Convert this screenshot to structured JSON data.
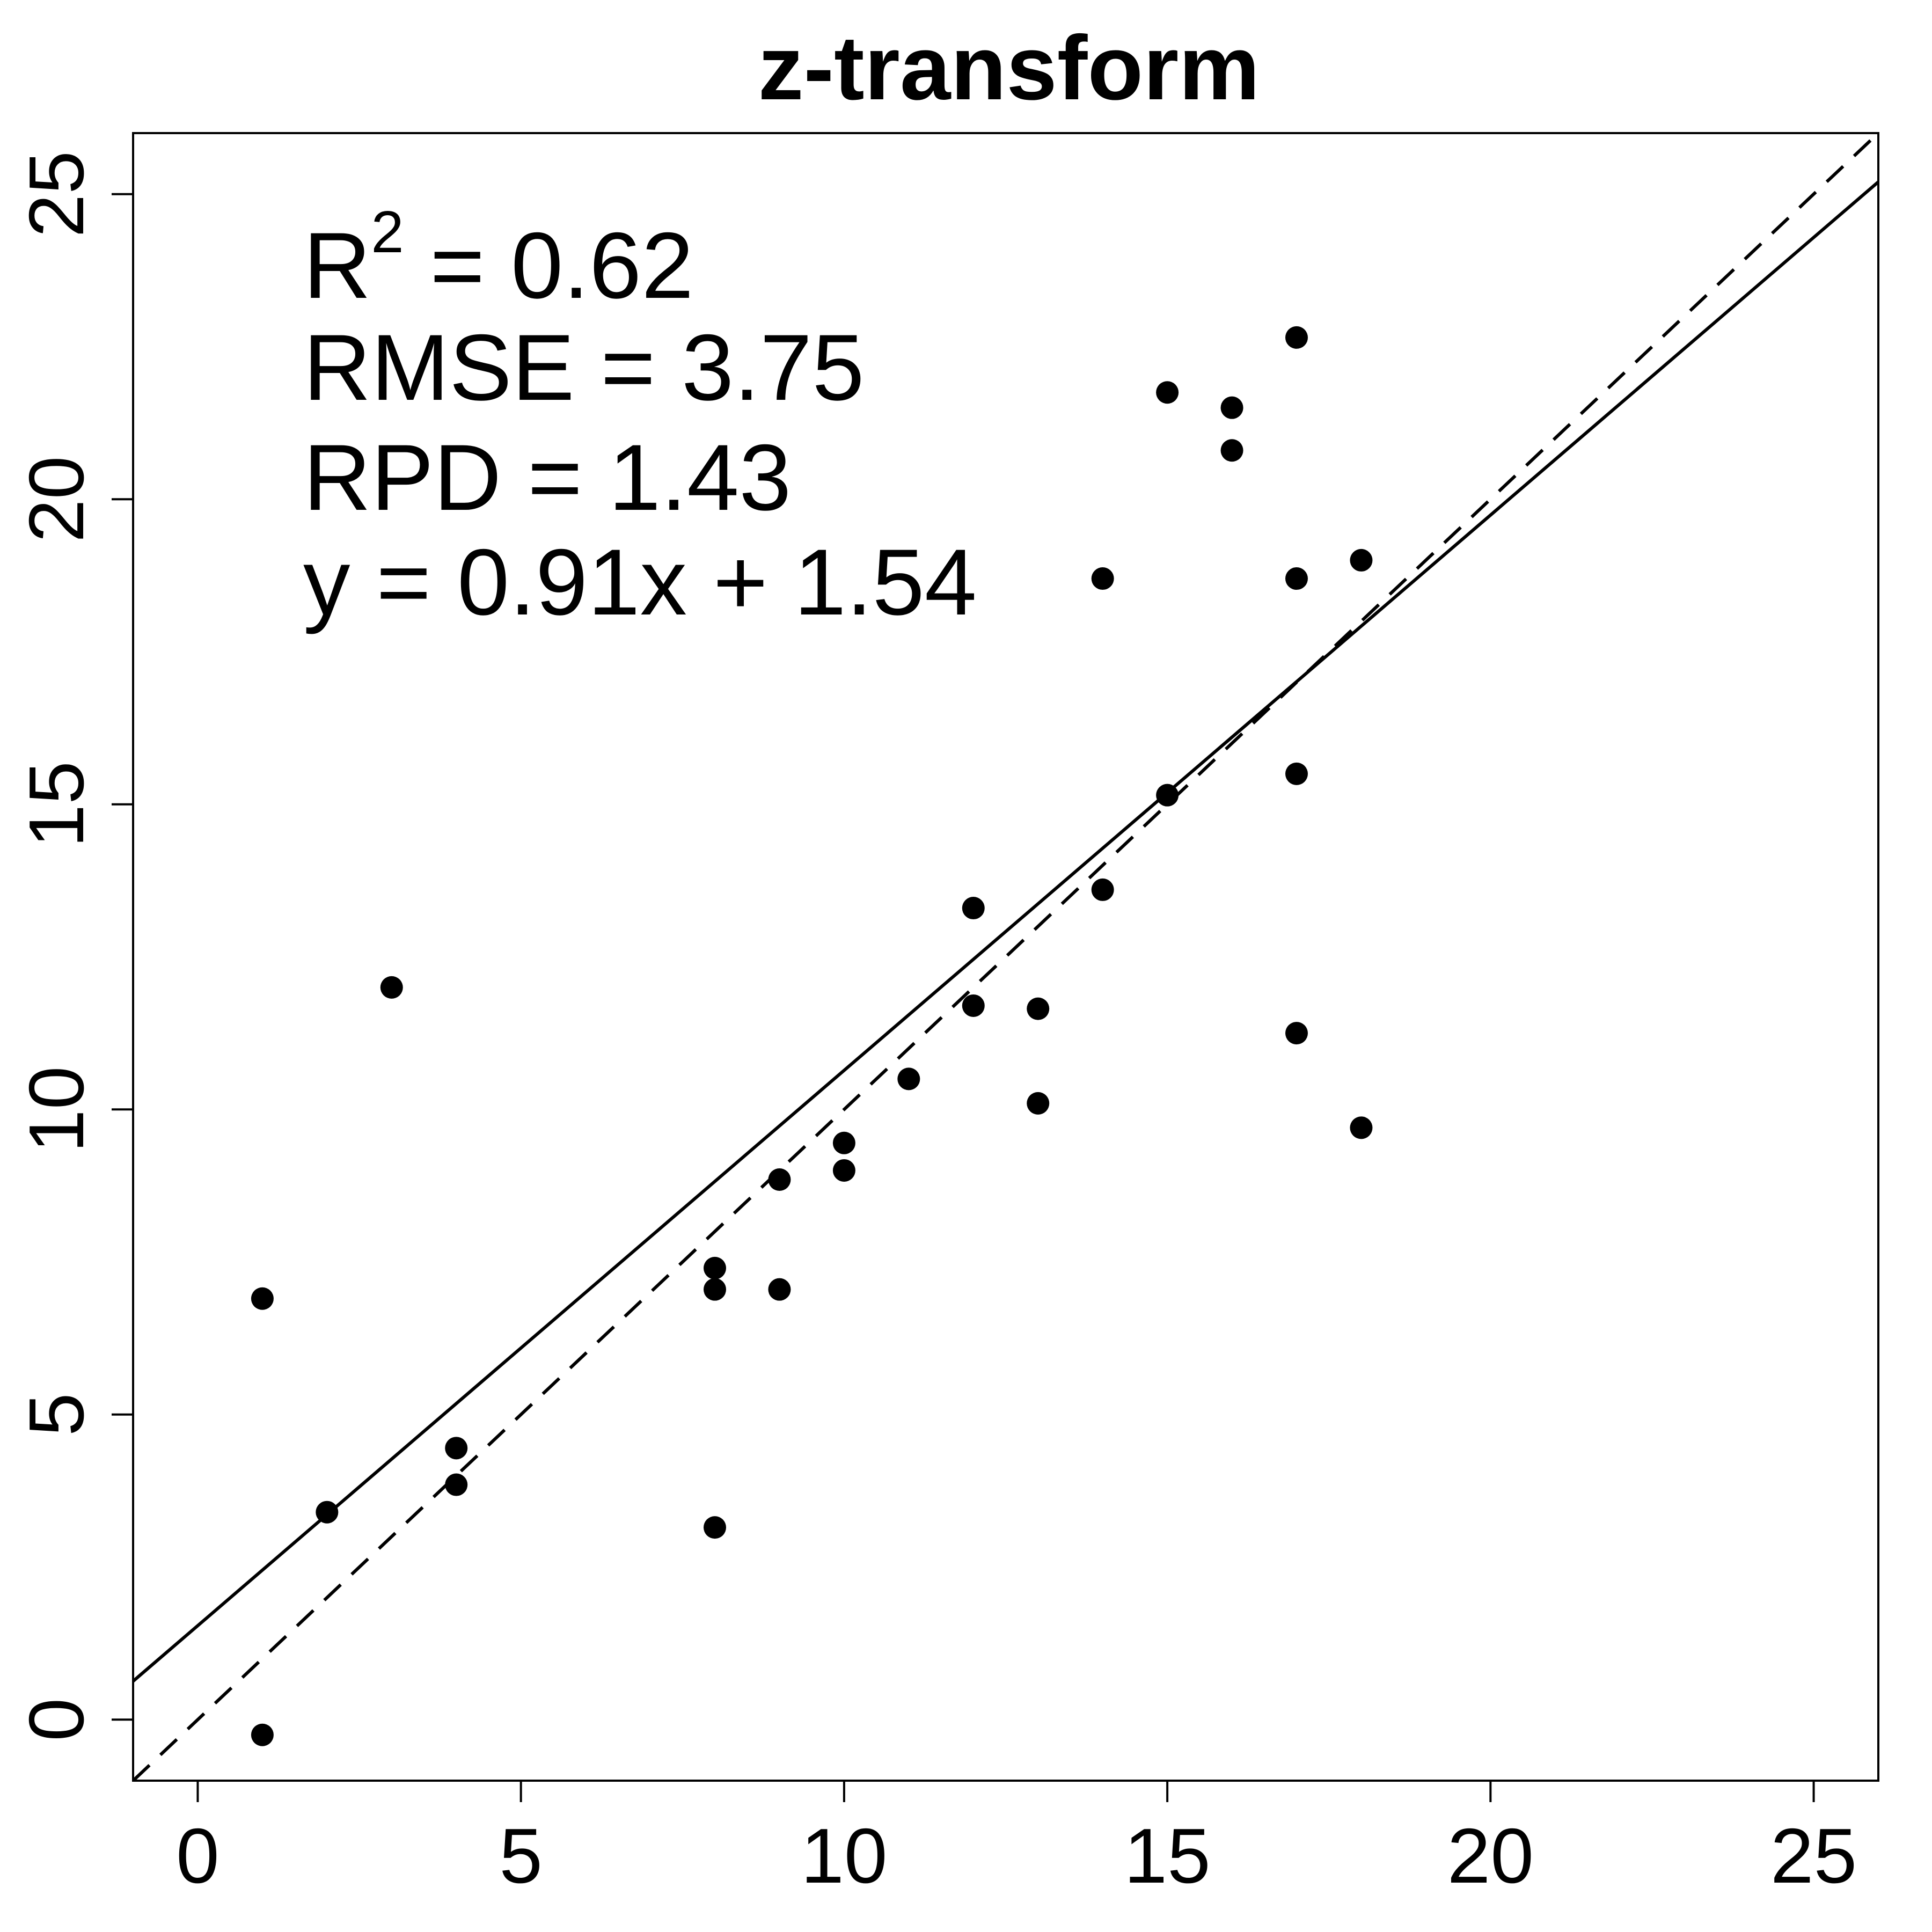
{
  "chart_data": {
    "type": "scatter",
    "title": "z-transform",
    "xlabel": "",
    "ylabel": "",
    "xlim": [
      -1,
      26
    ],
    "ylim": [
      -1,
      26
    ],
    "xticks": [
      0,
      5,
      10,
      15,
      20,
      25
    ],
    "yticks": [
      0,
      5,
      10,
      15,
      20,
      25
    ],
    "tick_labels": [
      "0",
      "5",
      "10",
      "15",
      "20",
      "25"
    ],
    "grid": false,
    "points": [
      {
        "x": 1,
        "y": 6.9
      },
      {
        "x": 1,
        "y": -0.25
      },
      {
        "x": 2,
        "y": 3.4
      },
      {
        "x": 3,
        "y": 12.0
      },
      {
        "x": 4,
        "y": 4.45
      },
      {
        "x": 4,
        "y": 3.85
      },
      {
        "x": 8,
        "y": 7.4
      },
      {
        "x": 8,
        "y": 7.05
      },
      {
        "x": 8,
        "y": 3.15
      },
      {
        "x": 9,
        "y": 8.85
      },
      {
        "x": 9,
        "y": 7.05
      },
      {
        "x": 10,
        "y": 9.45
      },
      {
        "x": 10,
        "y": 9.0
      },
      {
        "x": 11,
        "y": 10.5
      },
      {
        "x": 12,
        "y": 13.3
      },
      {
        "x": 12,
        "y": 11.7
      },
      {
        "x": 13,
        "y": 11.65
      },
      {
        "x": 13,
        "y": 10.1
      },
      {
        "x": 14,
        "y": 18.7
      },
      {
        "x": 14,
        "y": 13.6
      },
      {
        "x": 15,
        "y": 21.75
      },
      {
        "x": 15,
        "y": 15.15
      },
      {
        "x": 16,
        "y": 21.5
      },
      {
        "x": 16,
        "y": 20.8
      },
      {
        "x": 17,
        "y": 22.65
      },
      {
        "x": 17,
        "y": 18.7
      },
      {
        "x": 17,
        "y": 15.5
      },
      {
        "x": 17,
        "y": 11.25
      },
      {
        "x": 18,
        "y": 19.0
      },
      {
        "x": 18,
        "y": 9.7
      }
    ],
    "fit_line": {
      "slope": 0.91,
      "intercept": 1.54,
      "style": "solid"
    },
    "reference_line": {
      "slope": 1,
      "intercept": 0,
      "style": "dashed"
    },
    "annotations": {
      "r2_label": "R",
      "r2_sup": "2",
      "r2_value": " = 0.62",
      "rmse": "RMSE = 3.75",
      "rpd": "RPD = 1.43",
      "equation": "y = 0.91x + 1.54"
    }
  }
}
